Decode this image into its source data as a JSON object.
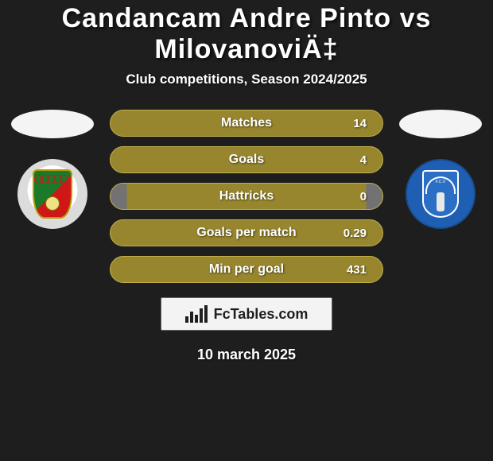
{
  "title": "Candancam Andre Pinto vs MilovanoviÄ‡",
  "subtitle": "Club competitions, Season 2024/2025",
  "date": "10 march 2025",
  "site_label": "FcTables.com",
  "colors": {
    "background": "#1e1e1e",
    "pill_bg_full": "#97862e",
    "pill_bg_empty": "#727272",
    "pill_border": "#c2b04a",
    "text": "#ffffff",
    "badge_bg": "#f3f3f3",
    "badge_text": "#1e1e1e"
  },
  "stats": [
    {
      "label": "Matches",
      "right_value": "14",
      "fill": 1.0
    },
    {
      "label": "Goals",
      "right_value": "4",
      "fill": 1.0
    },
    {
      "label": "Hattricks",
      "right_value": "0",
      "fill": 0.0,
      "right_label_pad": true
    },
    {
      "label": "Goals per match",
      "right_value": "0.29",
      "fill": 1.0
    },
    {
      "label": "Min per goal",
      "right_value": "431",
      "fill": 1.0
    }
  ],
  "player_left": {
    "name": "Candancam Andre Pinto",
    "club_icon": "club-a"
  },
  "player_right": {
    "name": "MilovanoviÄ‡",
    "club_icon": "club-b"
  }
}
